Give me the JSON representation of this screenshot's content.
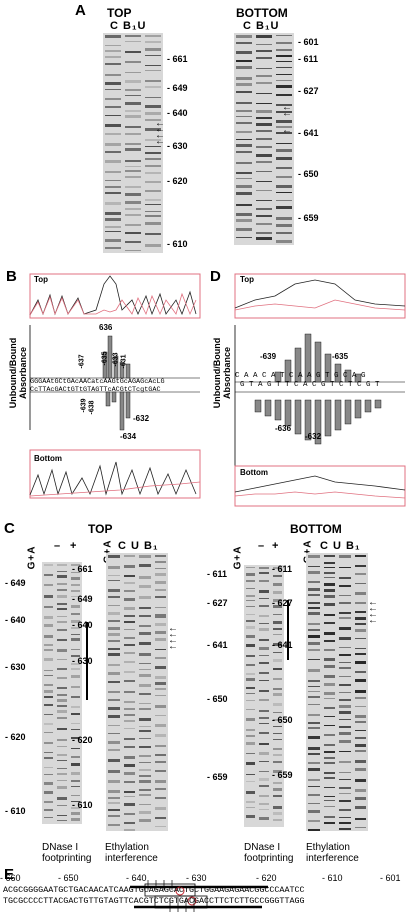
{
  "panels": {
    "A": {
      "letter": "A",
      "top": {
        "title": "TOP",
        "lanes": "C B₁U",
        "ticks": [
          "- 661",
          "- 649",
          "- 640",
          "- 630",
          "- 620",
          "- 610"
        ]
      },
      "bottom": {
        "title": "BOTTOM",
        "lanes": "C B₁U",
        "ticks": [
          "- 601",
          "- 611",
          "- 627",
          "- 641",
          "- 650",
          "- 659"
        ]
      }
    },
    "B": {
      "letter": "B",
      "top_label": "Top",
      "bottom_label": "Bottom",
      "absorbance": "Absorbance",
      "ylabel": "Unbound/Bound Absorbance",
      "yticks_top": [
        "20",
        "18",
        "16",
        "14",
        "12",
        "10",
        "8",
        "6",
        "4",
        "2",
        "1"
      ],
      "yticks_bottom": [
        "1",
        "2",
        "3",
        "4",
        "5",
        "6"
      ],
      "peak_labels_top": [
        "-637",
        "-635",
        "-633",
        "-631",
        "636"
      ],
      "peak_labels_bottom": [
        "-639",
        "-638",
        "-632",
        "-634"
      ],
      "seq_top": "GGGAAtGCtGAcAACatcAAGtGcAGAGcAcLG",
      "seq_bottom": "CcTTAcGACtGTtGTAGTTcACGtCTcgtGAC"
    },
    "D": {
      "letter": "D",
      "top_label": "Top",
      "bottom_label": "Bottom",
      "absorbance": "Absorbance",
      "ylabel": "Unbound/Bound Absorbance",
      "yticks_top": [
        "10",
        "9",
        "8",
        "7",
        "6",
        "5",
        "4",
        "3",
        "2",
        "1"
      ],
      "yticks_bottom": [
        "1",
        "2",
        "3"
      ],
      "seq_top": "C A A C A T C A A G T G C A G",
      "seq_bottom": "G T A G T T C A C G T C T C G T",
      "labels": [
        "-639",
        "-635",
        "-636",
        "-632"
      ]
    },
    "C": {
      "letter": "C",
      "top_title": "TOP",
      "bottom_title": "BOTTOM",
      "lanes_dnase": "G+A  –  +",
      "lanes_eth": "G+A C U B₁",
      "ticks_top_dnase": [
        "- 649",
        "- 640",
        "- 630",
        "- 620",
        "- 610"
      ],
      "ticks_top_eth": [
        "- 661",
        "- 649",
        "- 640",
        "- 630",
        "- 620",
        "- 610"
      ],
      "ticks_bot_dnase": [
        "- 611",
        "- 627",
        "- 641",
        "- 650",
        "- 659"
      ],
      "ticks_bot_eth": [
        "- 611",
        "- 627",
        "- 641",
        "- 650",
        "- 659"
      ],
      "cap_dnase": [
        "DNase I",
        "footprinting"
      ],
      "cap_eth": [
        "Ethylation",
        "interference"
      ]
    },
    "E": {
      "letter": "E",
      "scale": [
        "- 660",
        "- 650",
        "- 640",
        "- 630",
        "- 620",
        "- 610",
        "- 601"
      ],
      "seq_top": "ACGCGGGGAATGCTGACAACATCAAGTGCAGAGCACTGCTGGAAGAGAACGGCCCAATCC",
      "seq_bottom": "TGCGCCCCTTACGACTGTTGTAGTTCACGTCTCGTGACGACCTTCTCTTGCCGGGTTAGG"
    }
  },
  "colors": {
    "trace_dark": "#222222",
    "trace_pink": "#e0707f",
    "box_pink": "#e07080",
    "circle_red": "#c0202a"
  }
}
